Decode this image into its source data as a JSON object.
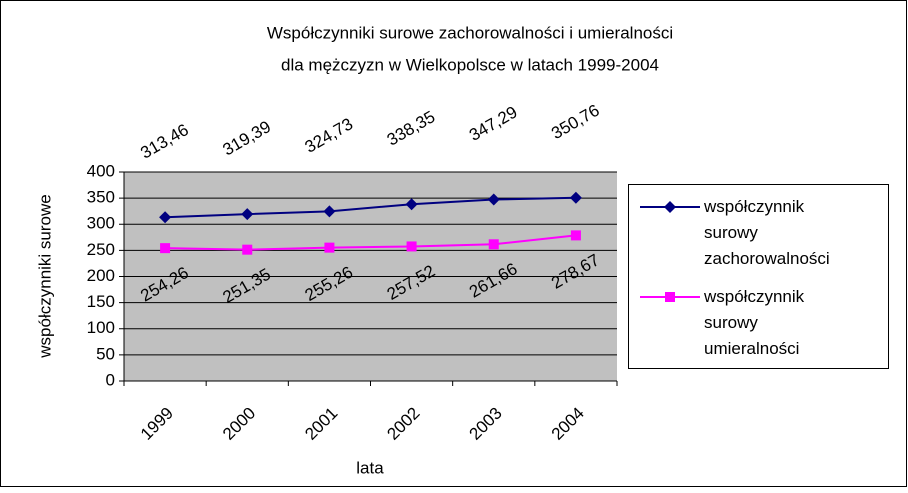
{
  "chart_data": {
    "type": "line",
    "title": [
      "Współczynniki surowe zachorowalności i umieralności",
      "dla mężczyzn w Wielkopolsce w latach 1999-2004"
    ],
    "x_label": "lata",
    "y_label": "współczynniki surowe",
    "categories": [
      "1999",
      "2000",
      "2001",
      "2002",
      "2003",
      "2004"
    ],
    "series": [
      {
        "name": "współczynnik surowy zachorowalności",
        "color": "#000080",
        "marker": "diamond",
        "values": [
          313.46,
          319.39,
          324.73,
          338.35,
          347.29,
          350.76
        ],
        "value_labels": [
          "313,46",
          "319,39",
          "324,73",
          "338,35",
          "347,29",
          "350,76"
        ]
      },
      {
        "name": "współczynnik surowy umieralności",
        "color": "#ff00ff",
        "marker": "square",
        "values": [
          254.26,
          251.35,
          255.26,
          257.52,
          261.66,
          278.67
        ],
        "value_labels": [
          "254,26",
          "251,35",
          "255,26",
          "257,52",
          "261,66",
          "278,67"
        ]
      }
    ],
    "ylim": [
      0,
      400
    ],
    "yticks": [
      0,
      50,
      100,
      150,
      200,
      250,
      300,
      350,
      400
    ],
    "grid": true,
    "legend": "right"
  }
}
